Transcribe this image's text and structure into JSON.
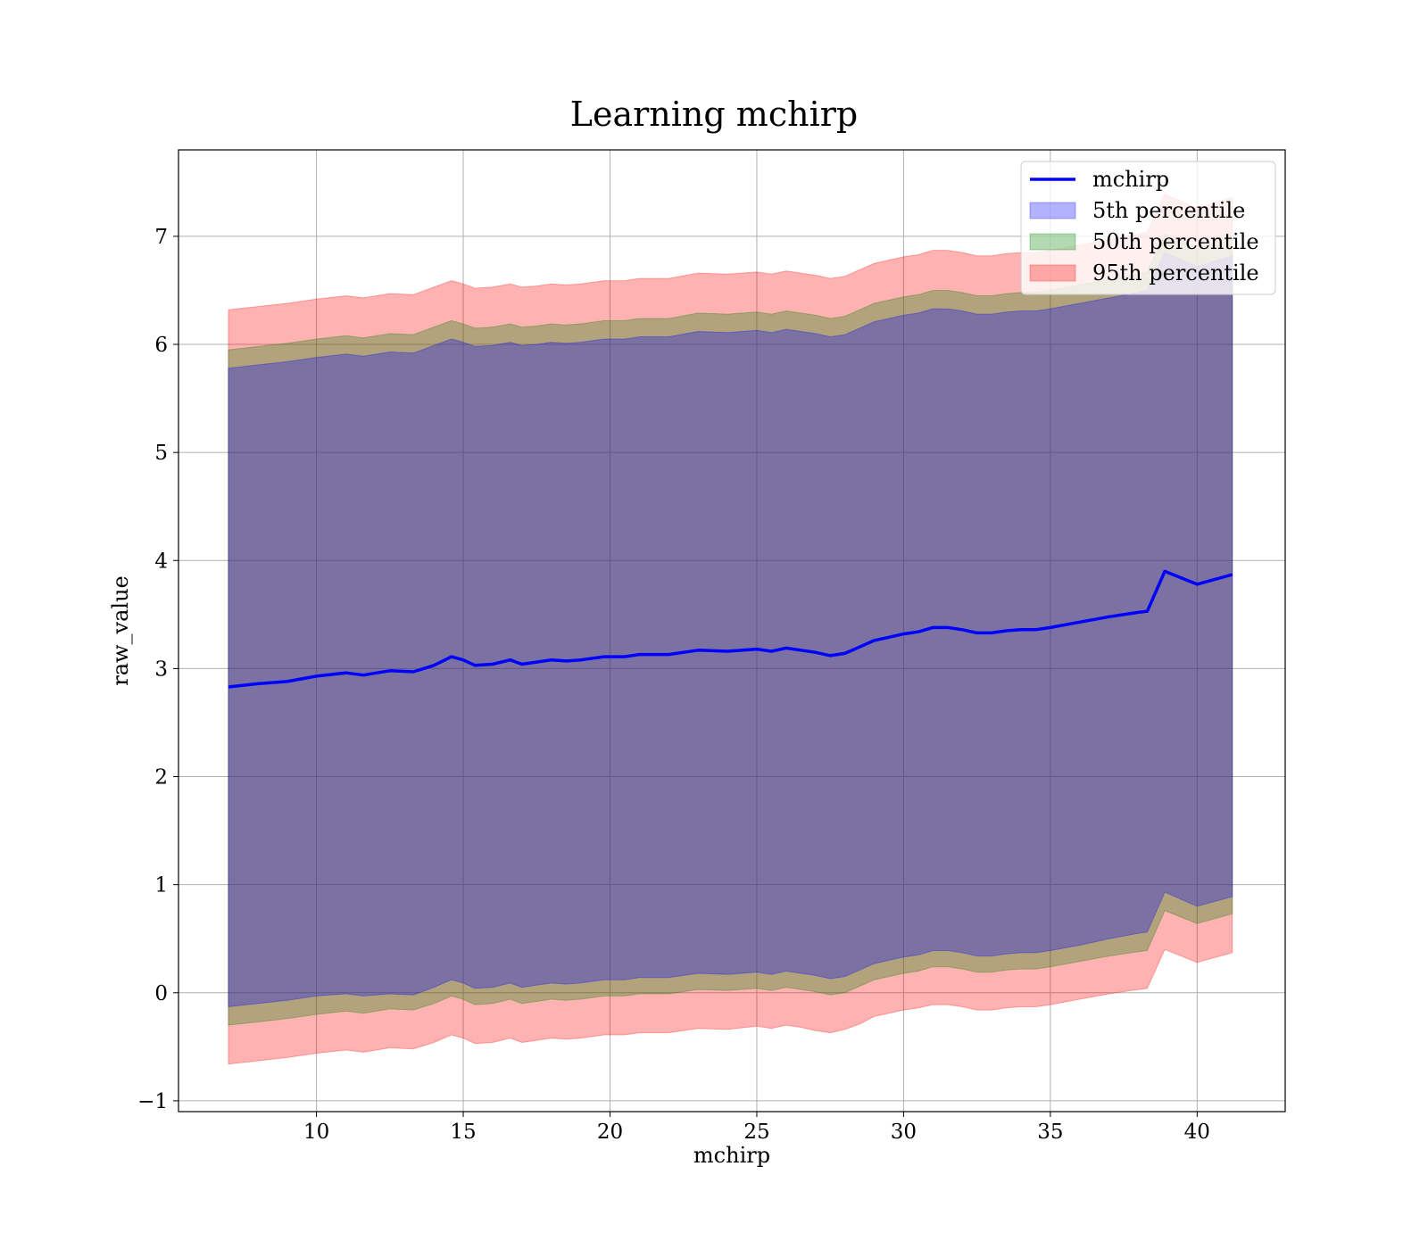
{
  "chart_data": {
    "type": "area",
    "title": "Learning mchirp",
    "xlabel": "mchirp",
    "ylabel": "raw_value",
    "xlim": [
      5.3,
      43.0
    ],
    "ylim": [
      -1.1,
      7.8
    ],
    "x_ticks": [
      "10",
      "15",
      "20",
      "25",
      "30",
      "35",
      "40"
    ],
    "y_ticks": [
      "−1",
      "0",
      "1",
      "2",
      "3",
      "4",
      "5",
      "6",
      "7"
    ],
    "grid": true,
    "legend_position": "upper right",
    "legend": [
      "mchirp",
      "5th percentile",
      "50th percentile",
      "95th percentile"
    ],
    "colors": {
      "line": "#0000ff",
      "band_5th": "#0000ff",
      "band_50th": "#008000",
      "band_95th": "#ff0000"
    },
    "x": [
      7.0,
      8.0,
      9.0,
      10.0,
      11.0,
      11.6,
      12.5,
      13.3,
      14.0,
      14.6,
      15.0,
      15.4,
      16.0,
      16.6,
      17.0,
      17.5,
      18.0,
      18.5,
      19.0,
      19.8,
      20.5,
      21.0,
      22.0,
      23.0,
      24.0,
      25.0,
      25.5,
      26.0,
      26.5,
      27.0,
      27.5,
      28.0,
      28.5,
      29.0,
      29.5,
      30.0,
      30.5,
      31.0,
      31.5,
      32.0,
      32.5,
      33.0,
      33.5,
      34.0,
      34.5,
      35.0,
      36.0,
      37.0,
      38.0,
      38.3,
      38.9,
      40.0,
      41.2
    ],
    "series": [
      {
        "name": "mchirp",
        "values": [
          2.83,
          2.86,
          2.88,
          2.93,
          2.96,
          2.94,
          2.98,
          2.97,
          3.03,
          3.11,
          3.08,
          3.03,
          3.04,
          3.08,
          3.04,
          3.06,
          3.08,
          3.07,
          3.08,
          3.11,
          3.11,
          3.13,
          3.13,
          3.17,
          3.16,
          3.18,
          3.16,
          3.19,
          3.17,
          3.15,
          3.12,
          3.14,
          3.2,
          3.26,
          3.29,
          3.32,
          3.34,
          3.38,
          3.38,
          3.36,
          3.33,
          3.33,
          3.35,
          3.36,
          3.36,
          3.38,
          3.43,
          3.48,
          3.52,
          3.53,
          3.9,
          3.78,
          3.87
        ]
      },
      {
        "name": "5th percentile",
        "lower": [
          -0.13,
          -0.1,
          -0.07,
          -0.03,
          -0.01,
          -0.03,
          -0.01,
          -0.02,
          0.05,
          0.12,
          0.09,
          0.04,
          0.05,
          0.09,
          0.05,
          0.07,
          0.09,
          0.08,
          0.09,
          0.12,
          0.12,
          0.14,
          0.14,
          0.18,
          0.17,
          0.19,
          0.17,
          0.2,
          0.18,
          0.16,
          0.13,
          0.15,
          0.21,
          0.27,
          0.3,
          0.33,
          0.35,
          0.39,
          0.39,
          0.37,
          0.34,
          0.34,
          0.36,
          0.37,
          0.37,
          0.39,
          0.44,
          0.5,
          0.55,
          0.56,
          0.93,
          0.8,
          0.89
        ],
        "upper": [
          5.78,
          5.81,
          5.84,
          5.88,
          5.91,
          5.89,
          5.93,
          5.92,
          5.99,
          6.05,
          6.02,
          5.98,
          5.99,
          6.02,
          5.99,
          6.0,
          6.02,
          6.01,
          6.02,
          6.05,
          6.05,
          6.07,
          6.07,
          6.12,
          6.11,
          6.13,
          6.11,
          6.14,
          6.12,
          6.1,
          6.07,
          6.09,
          6.15,
          6.21,
          6.24,
          6.27,
          6.29,
          6.33,
          6.33,
          6.31,
          6.28,
          6.28,
          6.3,
          6.31,
          6.31,
          6.33,
          6.38,
          6.43,
          6.48,
          6.5,
          6.85,
          6.72,
          6.82
        ]
      },
      {
        "name": "50th percentile",
        "lower": [
          -0.3,
          -0.27,
          -0.24,
          -0.2,
          -0.17,
          -0.19,
          -0.15,
          -0.16,
          -0.1,
          -0.03,
          -0.06,
          -0.11,
          -0.1,
          -0.06,
          -0.1,
          -0.08,
          -0.06,
          -0.07,
          -0.06,
          -0.03,
          -0.03,
          -0.01,
          -0.01,
          0.03,
          0.02,
          0.04,
          0.02,
          0.05,
          0.03,
          0.01,
          -0.02,
          0.0,
          0.06,
          0.12,
          0.15,
          0.18,
          0.2,
          0.24,
          0.24,
          0.22,
          0.19,
          0.19,
          0.21,
          0.22,
          0.22,
          0.24,
          0.29,
          0.34,
          0.38,
          0.39,
          0.76,
          0.64,
          0.73
        ],
        "upper": [
          5.95,
          5.98,
          6.01,
          6.05,
          6.08,
          6.06,
          6.1,
          6.09,
          6.16,
          6.22,
          6.19,
          6.15,
          6.16,
          6.19,
          6.16,
          6.17,
          6.19,
          6.18,
          6.19,
          6.22,
          6.22,
          6.24,
          6.24,
          6.29,
          6.28,
          6.3,
          6.28,
          6.31,
          6.29,
          6.27,
          6.24,
          6.26,
          6.32,
          6.38,
          6.41,
          6.44,
          6.46,
          6.5,
          6.5,
          6.48,
          6.45,
          6.45,
          6.47,
          6.48,
          6.48,
          6.5,
          6.55,
          6.6,
          6.65,
          6.67,
          7.02,
          6.89,
          6.99
        ]
      },
      {
        "name": "95th percentile",
        "lower": [
          -0.66,
          -0.63,
          -0.6,
          -0.56,
          -0.53,
          -0.55,
          -0.51,
          -0.52,
          -0.46,
          -0.39,
          -0.42,
          -0.47,
          -0.46,
          -0.42,
          -0.46,
          -0.44,
          -0.42,
          -0.43,
          -0.42,
          -0.39,
          -0.39,
          -0.37,
          -0.37,
          -0.33,
          -0.34,
          -0.31,
          -0.33,
          -0.3,
          -0.32,
          -0.35,
          -0.37,
          -0.34,
          -0.29,
          -0.22,
          -0.19,
          -0.16,
          -0.14,
          -0.11,
          -0.11,
          -0.13,
          -0.16,
          -0.16,
          -0.14,
          -0.13,
          -0.13,
          -0.11,
          -0.06,
          -0.01,
          0.03,
          0.04,
          0.4,
          0.28,
          0.37
        ],
        "upper": [
          6.32,
          6.35,
          6.38,
          6.42,
          6.45,
          6.43,
          6.47,
          6.46,
          6.53,
          6.59,
          6.56,
          6.52,
          6.53,
          6.56,
          6.53,
          6.54,
          6.56,
          6.55,
          6.56,
          6.59,
          6.59,
          6.61,
          6.61,
          6.66,
          6.65,
          6.67,
          6.65,
          6.68,
          6.66,
          6.64,
          6.61,
          6.63,
          6.69,
          6.75,
          6.78,
          6.81,
          6.83,
          6.87,
          6.87,
          6.85,
          6.82,
          6.82,
          6.84,
          6.85,
          6.85,
          6.87,
          6.92,
          6.97,
          7.02,
          7.04,
          7.39,
          7.26,
          7.36
        ]
      }
    ]
  }
}
